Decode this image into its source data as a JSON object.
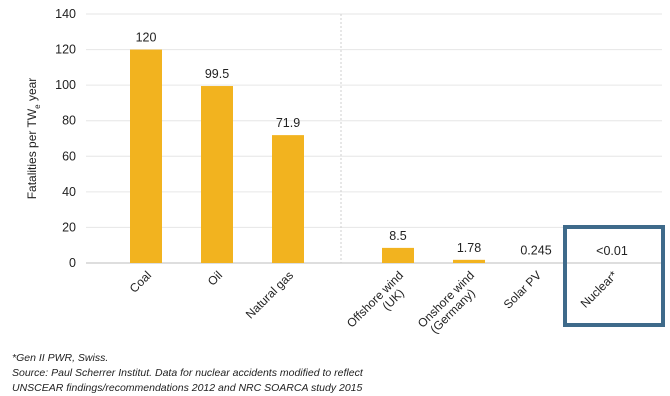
{
  "chart_data": {
    "type": "bar",
    "title": "",
    "xlabel": "",
    "ylabel": "Fatalities per TW",
    "ylabel_subscript": "e",
    "ylabel_suffix": " year",
    "ylim": [
      0,
      140
    ],
    "yticks": [
      0,
      20,
      40,
      60,
      80,
      100,
      120,
      140
    ],
    "grid": true,
    "categories": [
      "Coal",
      "Oil",
      "Natural gas",
      "Offshore wind (UK)",
      "Onshore wind (Germany)",
      "Solar PV",
      "Nuclear*"
    ],
    "category_lines": [
      [
        "Coal"
      ],
      [
        "Oil"
      ],
      [
        "Natural gas"
      ],
      [
        "Offshore wind",
        "(UK)"
      ],
      [
        "Onshore wind",
        "(Germany)"
      ],
      [
        "Solar PV"
      ],
      [
        "Nuclear*"
      ]
    ],
    "values": [
      120,
      99.5,
      71.9,
      8.5,
      1.78,
      0.245,
      0.01
    ],
    "data_labels": [
      "120",
      "99.5",
      "71.9",
      "8.5",
      "1.78",
      "0.245",
      "<0.01"
    ],
    "bar_color": "#F2B31F",
    "highlight_color": "#3E6A8A",
    "highlight_category": "Nuclear*"
  },
  "footnotes": {
    "line1": "*Gen II PWR, Swiss.",
    "line2": "Source: Paul Scherrer Institut. Data for nuclear accidents modified to reflect",
    "line3": "UNSCEAR findings/recommendations 2012 and NRC SOARCA study 2015"
  }
}
